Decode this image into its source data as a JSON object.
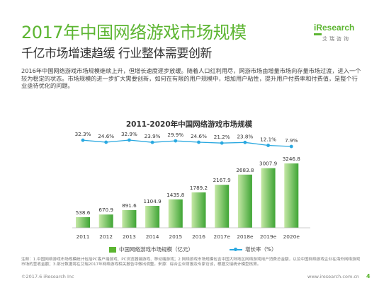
{
  "header": {
    "title": "2017年中国网络游戏市场规模",
    "subtitle": "千亿市场增速趋缓 行业整体需要创新"
  },
  "logo": {
    "name": "iResearch",
    "sub": "艾瑞咨询"
  },
  "body_text": "2016年中国网络游戏市场规模继续上升，但增长速度逐步放缓。随着人口红利用尽，网游市场由增量市场向存量市场过渡，进入一个较为稳定的状态。市场规模的进一步扩大需要创新，如何在有限的用户规模中，增加用户粘性，提升用户付费率和付费值，是整个行业亟待优化的问题。",
  "chart_data": {
    "type": "bar",
    "title": "2011-2020年中国网络游戏市场规模",
    "categories": [
      "2011",
      "2012",
      "2013",
      "2014",
      "2015",
      "2016",
      "2017e",
      "2018e",
      "2019e",
      "2020e"
    ],
    "series": [
      {
        "name": "中国网络游戏市场规模（亿元）",
        "type": "bar",
        "values": [
          538.6,
          670.9,
          891.6,
          1104.9,
          1435.8,
          1789.2,
          2167.9,
          2683.8,
          3007.9,
          3246.8
        ],
        "labels": [
          "538.6",
          "670.9",
          "891.6",
          "1104.9",
          "1435.8",
          "1789.2",
          "2167.9",
          "2683.8",
          "3007.9",
          "3246.8"
        ]
      },
      {
        "name": "增长率（%）",
        "type": "line",
        "values": [
          32.3,
          24.6,
          32.9,
          23.9,
          29.9,
          24.6,
          21.2,
          23.8,
          12.1,
          7.9
        ],
        "labels": [
          "32.3%",
          "24.6%",
          "32.9%",
          "23.9%",
          "29.9%",
          "24.6%",
          "21.2%",
          "23.8%",
          "12.1%",
          "7.9%"
        ]
      }
    ],
    "grid": false,
    "legend": "bottom"
  },
  "colors": {
    "accent": "#5cb531",
    "bar_light": "#c5e8a6",
    "bar_dark": "#3fa535",
    "line": "#29a8e0"
  },
  "note": "注释：1.中国网络游戏市场规模统计包括PC客户端游戏、PC浏览器端游戏、移动端游戏；2.网络游戏市场规模包含中国大陆地区网络游戏用户消费总金额，以及中国网络游戏企业在海外网络游戏市场的营收金额；3.部分数据将在艾瑞2017年网络游戏相关报告中做出调整。来源：综合企业财报及专家访谈，根据艾瑞统计模型核算。",
  "footer": {
    "copyright": "©2017.6 iResearch Inc",
    "website": "www.iresearch.com.cn",
    "page": "4"
  }
}
